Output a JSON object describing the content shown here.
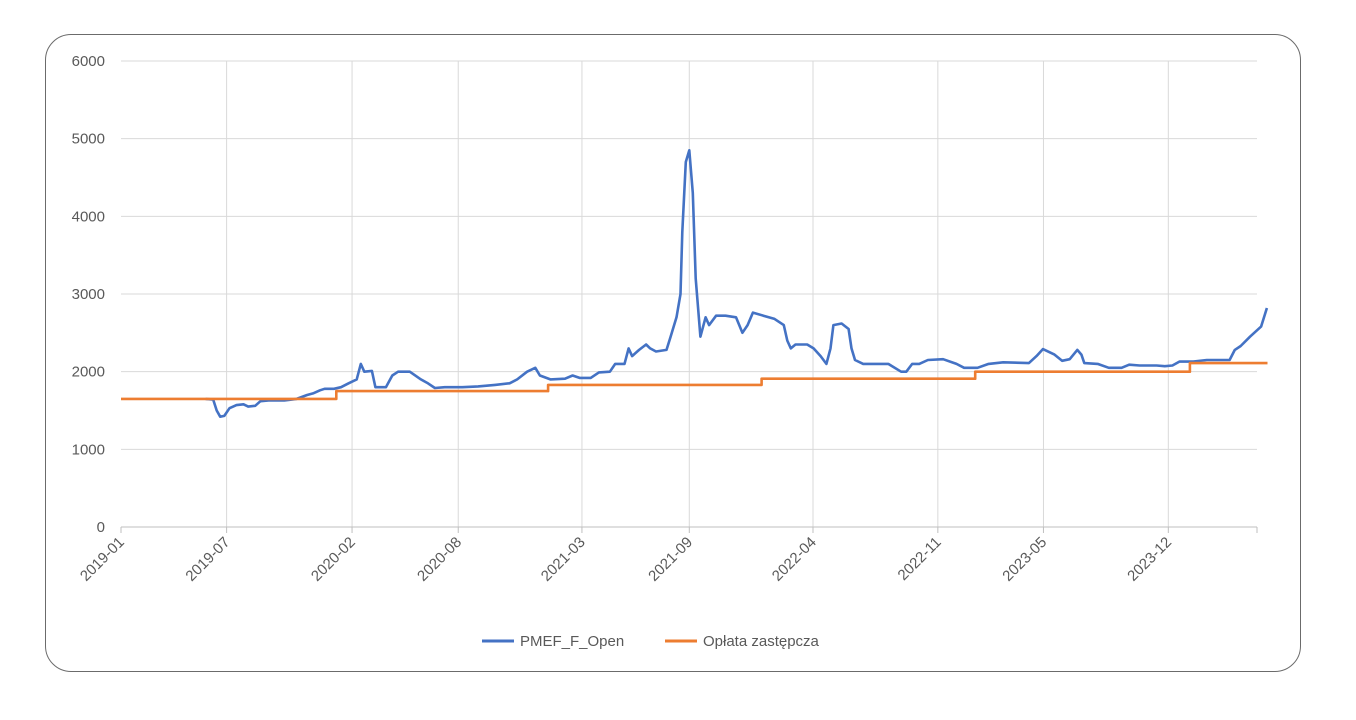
{
  "chart_data": {
    "type": "line",
    "title": "",
    "xlabel": "",
    "ylabel": "",
    "ylim": [
      0,
      6000
    ],
    "yticks": [
      "0",
      "1000",
      "2000",
      "3000",
      "4000",
      "5000",
      "6000"
    ],
    "xlim": [
      "2019-01",
      "2024-05"
    ],
    "xticks": [
      "2019-01",
      "2019-07",
      "2020-02",
      "2020-08",
      "2021-03",
      "2021-09",
      "2022-04",
      "2022-11",
      "2023-05",
      "2023-12"
    ],
    "grid": true,
    "legend_position": "bottom",
    "series": [
      {
        "name": "PMEF_F_Open",
        "color": "#4472c4",
        "points": [
          [
            "2019-05-26",
            1650
          ],
          [
            "2019-06-08",
            1640
          ],
          [
            "2019-06-14",
            1500
          ],
          [
            "2019-06-20",
            1420
          ],
          [
            "2019-06-27",
            1430
          ],
          [
            "2019-07-06",
            1530
          ],
          [
            "2019-07-18",
            1570
          ],
          [
            "2019-07-30",
            1580
          ],
          [
            "2019-08-07",
            1550
          ],
          [
            "2019-08-19",
            1560
          ],
          [
            "2019-08-28",
            1620
          ],
          [
            "2019-09-11",
            1630
          ],
          [
            "2019-10-08",
            1630
          ],
          [
            "2019-10-29",
            1650
          ],
          [
            "2019-11-16",
            1700
          ],
          [
            "2019-11-26",
            1720
          ],
          [
            "2019-12-08",
            1760
          ],
          [
            "2019-12-16",
            1780
          ],
          [
            "2020-01-01",
            1780
          ],
          [
            "2020-01-13",
            1800
          ],
          [
            "2020-01-26",
            1850
          ],
          [
            "2020-02-09",
            1900
          ],
          [
            "2020-02-16",
            2100
          ],
          [
            "2020-02-22",
            2000
          ],
          [
            "2020-03-06",
            2010
          ],
          [
            "2020-03-12",
            1800
          ],
          [
            "2020-03-30",
            1800
          ],
          [
            "2020-04-10",
            1950
          ],
          [
            "2020-04-20",
            2000
          ],
          [
            "2020-05-10",
            2000
          ],
          [
            "2020-05-29",
            1900
          ],
          [
            "2020-06-10",
            1850
          ],
          [
            "2020-06-22",
            1790
          ],
          [
            "2020-07-09",
            1800
          ],
          [
            "2020-08-08",
            1800
          ],
          [
            "2020-09-04",
            1810
          ],
          [
            "2020-10-03",
            1830
          ],
          [
            "2020-10-28",
            1850
          ],
          [
            "2020-11-10",
            1900
          ],
          [
            "2020-11-27",
            2000
          ],
          [
            "2020-12-11",
            2050
          ],
          [
            "2020-12-19",
            1950
          ],
          [
            "2021-01-06",
            1900
          ],
          [
            "2021-01-31",
            1910
          ],
          [
            "2021-02-13",
            1950
          ],
          [
            "2021-02-25",
            1920
          ],
          [
            "2021-03-16",
            1920
          ],
          [
            "2021-03-30",
            1990
          ],
          [
            "2021-04-18",
            2000
          ],
          [
            "2021-04-27",
            2100
          ],
          [
            "2021-05-13",
            2100
          ],
          [
            "2021-05-20",
            2300
          ],
          [
            "2021-05-26",
            2200
          ],
          [
            "2021-06-07",
            2280
          ],
          [
            "2021-06-19",
            2350
          ],
          [
            "2021-06-26",
            2300
          ],
          [
            "2021-07-06",
            2260
          ],
          [
            "2021-07-24",
            2280
          ],
          [
            "2021-07-31",
            2450
          ],
          [
            "2021-08-10",
            2700
          ],
          [
            "2021-08-17",
            3000
          ],
          [
            "2021-08-20",
            3800
          ],
          [
            "2021-08-26",
            4700
          ],
          [
            "2021-09-01",
            4850
          ],
          [
            "2021-09-07",
            4300
          ],
          [
            "2021-09-12",
            3200
          ],
          [
            "2021-09-20",
            2450
          ],
          [
            "2021-09-29",
            2700
          ],
          [
            "2021-10-05",
            2600
          ],
          [
            "2021-10-17",
            2720
          ],
          [
            "2021-11-02",
            2720
          ],
          [
            "2021-11-20",
            2700
          ],
          [
            "2021-12-01",
            2500
          ],
          [
            "2021-12-10",
            2600
          ],
          [
            "2021-12-19",
            2760
          ],
          [
            "2022-01-06",
            2720
          ],
          [
            "2022-01-25",
            2680
          ],
          [
            "2022-02-10",
            2600
          ],
          [
            "2022-02-16",
            2400
          ],
          [
            "2022-02-22",
            2300
          ],
          [
            "2022-03-02",
            2350
          ],
          [
            "2022-03-22",
            2350
          ],
          [
            "2022-04-02",
            2300
          ],
          [
            "2022-04-14",
            2200
          ],
          [
            "2022-04-24",
            2100
          ],
          [
            "2022-05-01",
            2300
          ],
          [
            "2022-05-06",
            2600
          ],
          [
            "2022-05-20",
            2620
          ],
          [
            "2022-06-01",
            2550
          ],
          [
            "2022-06-06",
            2300
          ],
          [
            "2022-06-12",
            2150
          ],
          [
            "2022-06-26",
            2100
          ],
          [
            "2022-07-21",
            2100
          ],
          [
            "2022-08-08",
            2100
          ],
          [
            "2022-08-30",
            2000
          ],
          [
            "2022-09-08",
            2000
          ],
          [
            "2022-09-18",
            2100
          ],
          [
            "2022-09-30",
            2100
          ],
          [
            "2022-10-15",
            2150
          ],
          [
            "2022-11-10",
            2160
          ],
          [
            "2022-12-03",
            2100
          ],
          [
            "2022-12-16",
            2050
          ],
          [
            "2023-01-08",
            2050
          ],
          [
            "2023-01-27",
            2100
          ],
          [
            "2023-02-21",
            2120
          ],
          [
            "2023-04-06",
            2110
          ],
          [
            "2023-04-19",
            2200
          ],
          [
            "2023-04-30",
            2290
          ],
          [
            "2023-05-20",
            2220
          ],
          [
            "2023-06-02",
            2140
          ],
          [
            "2023-06-15",
            2160
          ],
          [
            "2023-06-28",
            2280
          ],
          [
            "2023-07-05",
            2220
          ],
          [
            "2023-07-10",
            2110
          ],
          [
            "2023-08-02",
            2100
          ],
          [
            "2023-08-21",
            2050
          ],
          [
            "2023-09-12",
            2050
          ],
          [
            "2023-09-25",
            2090
          ],
          [
            "2023-10-13",
            2080
          ],
          [
            "2023-11-11",
            2080
          ],
          [
            "2023-11-25",
            2070
          ],
          [
            "2023-12-08",
            2080
          ],
          [
            "2023-12-20",
            2130
          ],
          [
            "2024-01-13",
            2130
          ],
          [
            "2024-02-05",
            2150
          ],
          [
            "2024-03-15",
            2150
          ],
          [
            "2024-03-24",
            2280
          ],
          [
            "2024-04-03",
            2330
          ],
          [
            "2024-04-19",
            2450
          ],
          [
            "2024-05-08",
            2580
          ],
          [
            "2024-05-18",
            2820
          ]
        ]
      },
      {
        "name": "Opłata zastępcza",
        "color": "#ed7d31",
        "step": true,
        "points": [
          [
            "2019-01-01",
            1650
          ],
          [
            "2020-01-05",
            1750
          ],
          [
            "2021-01-02",
            1830
          ],
          [
            "2022-01-03",
            1910
          ],
          [
            "2023-01-04",
            2000
          ],
          [
            "2024-01-07",
            2110
          ],
          [
            "2024-05-19",
            2110
          ]
        ]
      }
    ]
  }
}
